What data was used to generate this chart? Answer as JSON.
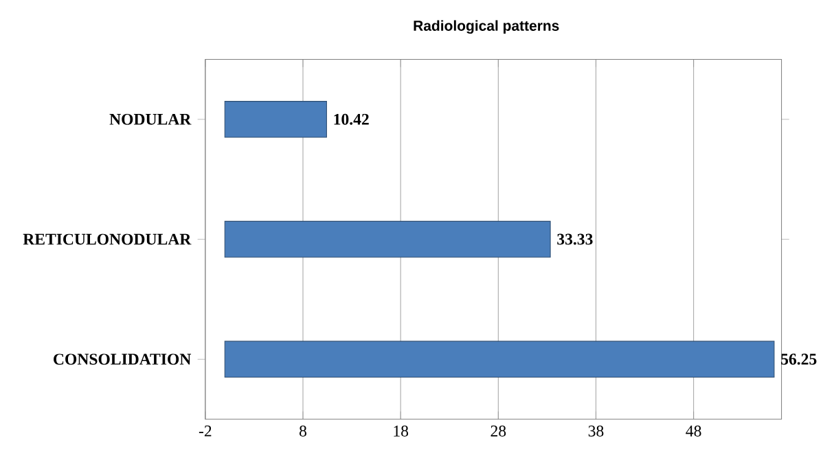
{
  "chart_data": {
    "type": "bar",
    "orientation": "horizontal",
    "title": "Radiological patterns",
    "categories": [
      "NODULAR",
      "RETICULONODULAR",
      "CONSOLIDATION"
    ],
    "values": [
      10.42,
      33.33,
      56.25
    ],
    "color": "#4a7ebb",
    "xlim": [
      -2,
      57
    ],
    "xticks": [
      -2,
      8,
      18,
      28,
      38,
      48
    ],
    "grid": "x",
    "data_labels": true
  }
}
